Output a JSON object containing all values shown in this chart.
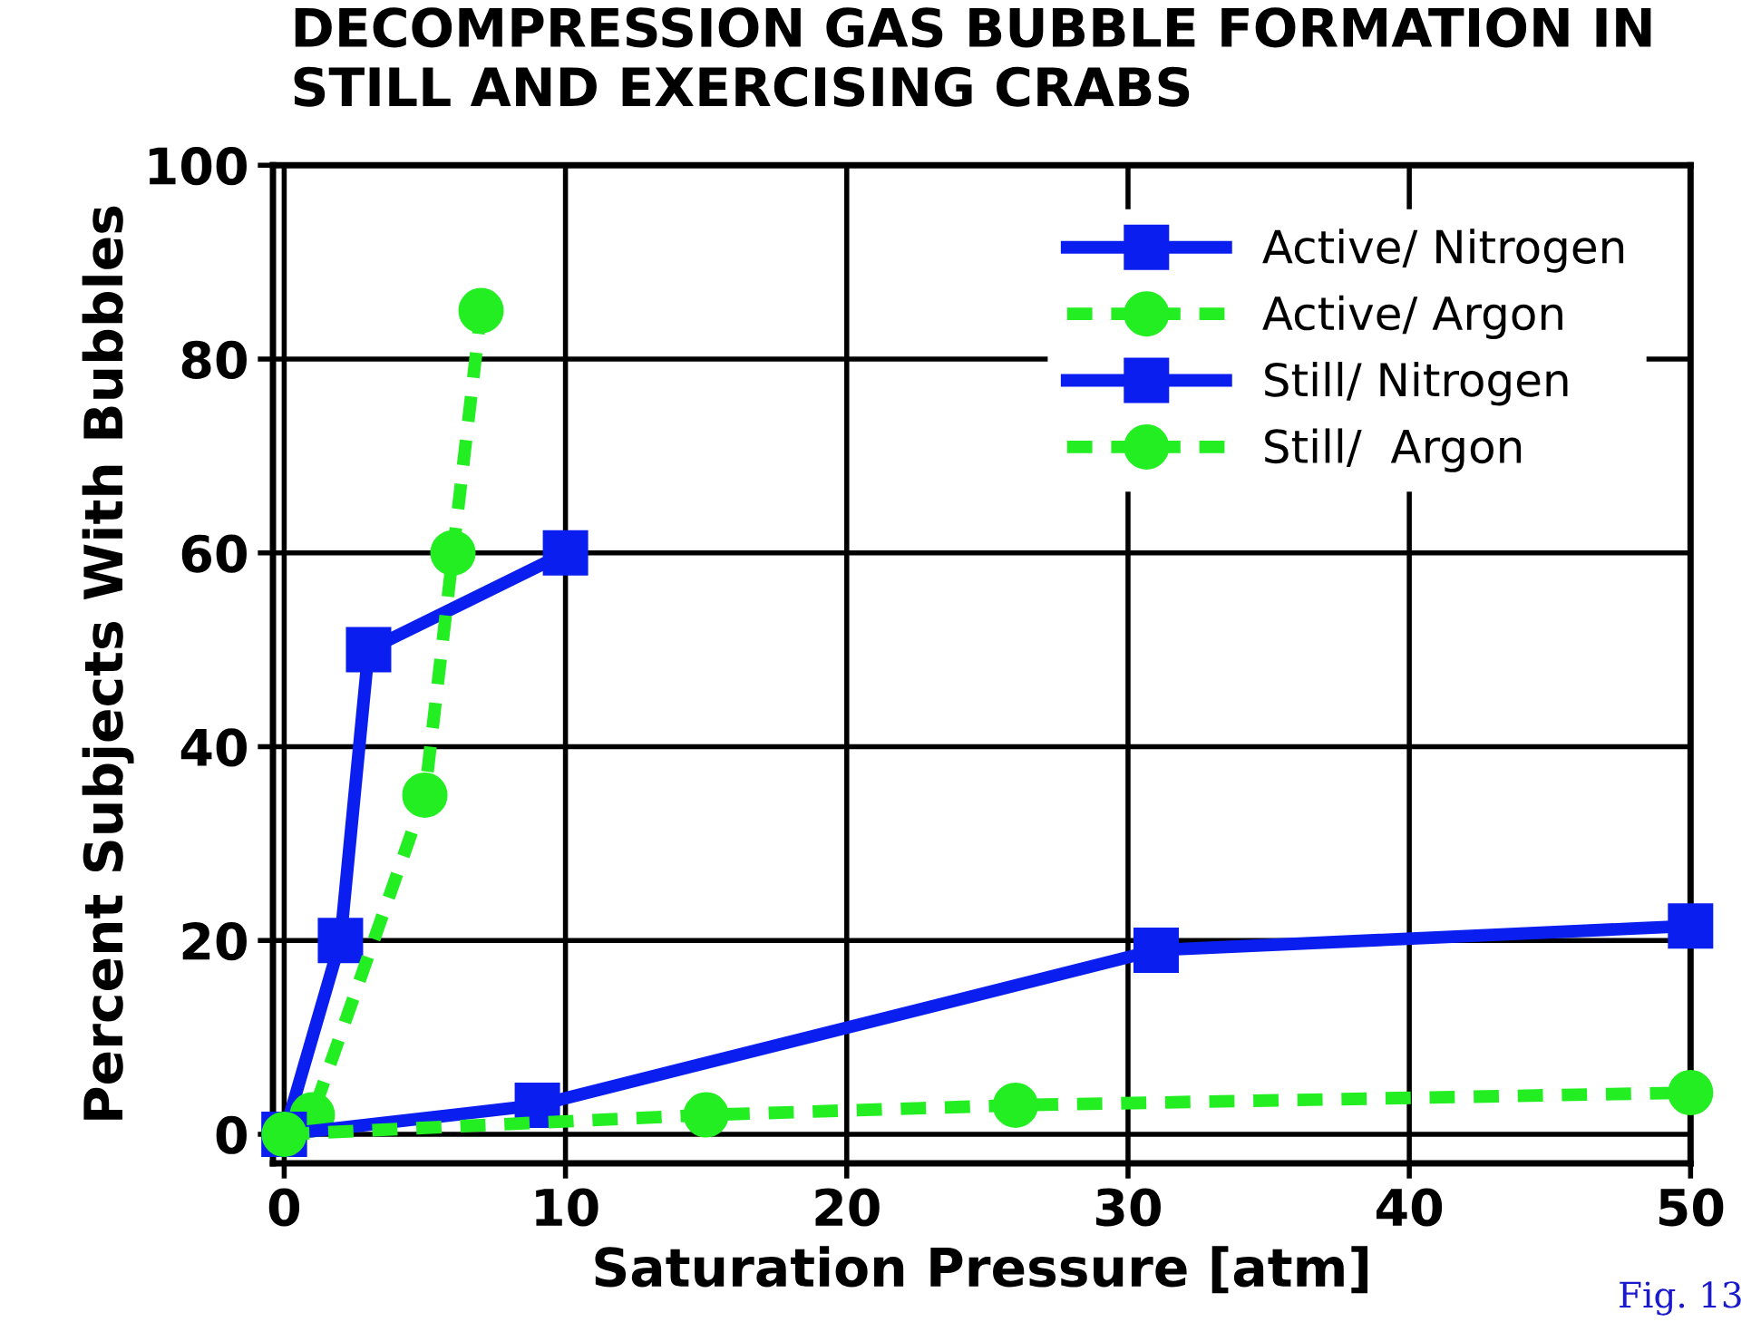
{
  "chart_data": {
    "type": "line",
    "title": "DECOMPRESSION GAS BUBBLE FORMATION IN\nSTILL AND EXERCISING CRABS",
    "xlabel": "Saturation Pressure [atm]",
    "ylabel": "Percent Subjects With Bubbles",
    "xlim": [
      -0.4,
      50
    ],
    "ylim": [
      -3,
      100
    ],
    "xticks": [
      0,
      10,
      20,
      30,
      40,
      50
    ],
    "yticks": [
      0,
      20,
      40,
      60,
      80,
      100
    ],
    "grid": true,
    "legend": "top right",
    "annotations": [
      "Fig. 13"
    ],
    "series": [
      {
        "name": "Active/ Nitrogen",
        "color": "#0a1ef0",
        "marker": "square",
        "line_style": "solid",
        "x": [
          0,
          2,
          3,
          10
        ],
        "values": [
          0,
          20,
          50,
          60
        ]
      },
      {
        "name": "Active/ Argon",
        "color": "#22ee22",
        "marker": "circle",
        "line_style": "dashed",
        "x": [
          0,
          1,
          5,
          6,
          7
        ],
        "values": [
          0,
          2,
          35,
          60,
          85
        ]
      },
      {
        "name": "Still/ Nitrogen",
        "color": "#0a1ef0",
        "marker": "square",
        "line_style": "solid",
        "x": [
          0,
          9,
          31,
          50
        ],
        "values": [
          0,
          3,
          19,
          21.5
        ]
      },
      {
        "name": "Still/  Argon",
        "color": "#22ee22",
        "marker": "circle",
        "line_style": "dashed",
        "x": [
          0,
          15,
          26,
          50
        ],
        "values": [
          0,
          2,
          3,
          4.3
        ]
      }
    ]
  }
}
